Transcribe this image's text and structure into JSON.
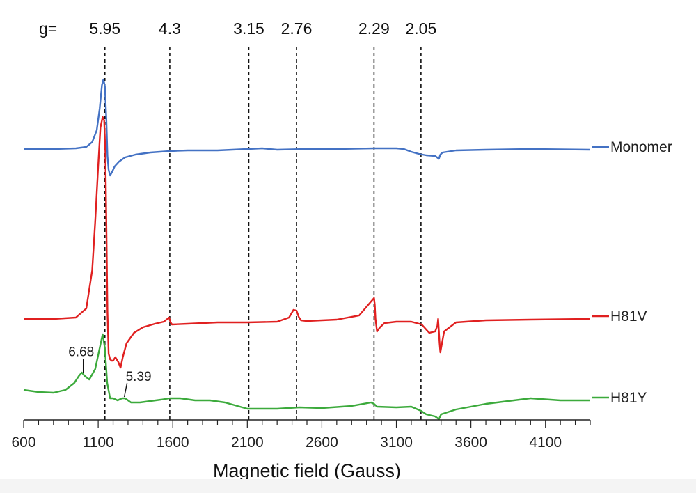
{
  "chart_data": {
    "type": "line",
    "title": "",
    "xlabel": "Magnetic field (Gauss)",
    "ylabel": "",
    "xlim": [
      600,
      4400
    ],
    "xticks": [
      600,
      1100,
      1600,
      2100,
      2600,
      3100,
      3600,
      4100
    ],
    "x_minor_step": 100,
    "grid": false,
    "legend": "right, label at end of each trace",
    "g_prefix": "g=",
    "g_markers": [
      {
        "label": "5.95",
        "x": 1145
      },
      {
        "label": "4.3",
        "x": 1580
      },
      {
        "label": "3.15",
        "x": 2110
      },
      {
        "label": "2.76",
        "x": 2430
      },
      {
        "label": "2.29",
        "x": 2950
      },
      {
        "label": "2.05",
        "x": 3265
      }
    ],
    "series": [
      {
        "name": "Monomer",
        "color": "#4472c4",
        "offset": 0.0,
        "x": [
          600,
          800,
          950,
          1020,
          1060,
          1090,
          1110,
          1125,
          1135,
          1145,
          1155,
          1162,
          1170,
          1180,
          1195,
          1210,
          1240,
          1280,
          1350,
          1450,
          1580,
          1700,
          1900,
          2100,
          2200,
          2300,
          2500,
          2700,
          2950,
          3100,
          3150,
          3200,
          3250,
          3300,
          3360,
          3385,
          3395,
          3410,
          3500,
          3700,
          4000,
          4400
        ],
        "y": [
          0.0,
          0.0,
          0.01,
          0.03,
          0.1,
          0.27,
          0.58,
          0.92,
          1.0,
          0.9,
          0.4,
          -0.1,
          -0.3,
          -0.38,
          -0.32,
          -0.25,
          -0.18,
          -0.12,
          -0.08,
          -0.05,
          -0.03,
          -0.02,
          -0.02,
          0.0,
          0.01,
          -0.01,
          0.0,
          0.0,
          0.01,
          0.01,
          0.0,
          -0.04,
          -0.07,
          -0.09,
          -0.1,
          -0.14,
          -0.08,
          -0.05,
          -0.02,
          -0.01,
          0.0,
          -0.01
        ]
      },
      {
        "name": "H81V",
        "color": "#e02020",
        "offset": -2.44,
        "x": [
          600,
          800,
          950,
          1020,
          1060,
          1080,
          1100,
          1115,
          1130,
          1140,
          1148,
          1155,
          1162,
          1170,
          1180,
          1190,
          1200,
          1215,
          1235,
          1250,
          1265,
          1290,
          1340,
          1400,
          1480,
          1540,
          1575,
          1585,
          1595,
          1700,
          1900,
          2100,
          2300,
          2380,
          2410,
          2430,
          2445,
          2460,
          2500,
          2700,
          2850,
          2930,
          2950,
          2955,
          2960,
          2970,
          2990,
          3020,
          3100,
          3200,
          3270,
          3320,
          3360,
          3375,
          3380,
          3390,
          3395,
          3420,
          3500,
          3700,
          4000,
          4400
        ],
        "y": [
          0.0,
          0.0,
          0.02,
          0.15,
          0.7,
          1.4,
          2.2,
          2.75,
          2.9,
          2.85,
          2.4,
          1.3,
          0.1,
          -0.5,
          -0.58,
          -0.6,
          -0.6,
          -0.55,
          -0.62,
          -0.7,
          -0.55,
          -0.35,
          -0.2,
          -0.12,
          -0.07,
          -0.04,
          0.02,
          -0.05,
          -0.08,
          -0.07,
          -0.05,
          -0.05,
          -0.04,
          0.02,
          0.13,
          0.12,
          0.03,
          -0.02,
          -0.03,
          -0.01,
          0.05,
          0.25,
          0.3,
          0.2,
          0.0,
          -0.18,
          -0.12,
          -0.06,
          -0.04,
          -0.04,
          -0.08,
          -0.2,
          -0.18,
          -0.1,
          0.0,
          -0.35,
          -0.48,
          -0.18,
          -0.05,
          -0.02,
          -0.01,
          0.0
        ]
      },
      {
        "name": "H81Y",
        "color": "#3caa3c",
        "offset": -3.46,
        "x": [
          600,
          700,
          800,
          880,
          940,
          970,
          990,
          1010,
          1040,
          1080,
          1110,
          1130,
          1145,
          1160,
          1180,
          1200,
          1230,
          1260,
          1280,
          1320,
          1380,
          1450,
          1520,
          1580,
          1650,
          1750,
          1850,
          1950,
          2100,
          2300,
          2450,
          2600,
          2800,
          2930,
          2950,
          2970,
          3100,
          3200,
          3265,
          3300,
          3360,
          3385,
          3400,
          3500,
          3700,
          4000,
          4200,
          4400
        ],
        "y": [
          0.0,
          -0.03,
          -0.04,
          0.0,
          0.1,
          0.2,
          0.25,
          0.2,
          0.15,
          0.3,
          0.6,
          0.8,
          0.6,
          0.1,
          -0.12,
          -0.12,
          -0.15,
          -0.12,
          -0.12,
          -0.18,
          -0.18,
          -0.16,
          -0.14,
          -0.12,
          -0.12,
          -0.15,
          -0.15,
          -0.18,
          -0.27,
          -0.27,
          -0.25,
          -0.26,
          -0.23,
          -0.18,
          -0.2,
          -0.24,
          -0.25,
          -0.24,
          -0.3,
          -0.35,
          -0.38,
          -0.42,
          -0.35,
          -0.28,
          -0.2,
          -0.12,
          -0.15,
          -0.15
        ]
      }
    ],
    "annotations": [
      {
        "label": "6.68",
        "x": 1000,
        "series": "H81Y"
      },
      {
        "label": "5.39",
        "x": 1275,
        "series": "H81Y"
      }
    ]
  }
}
